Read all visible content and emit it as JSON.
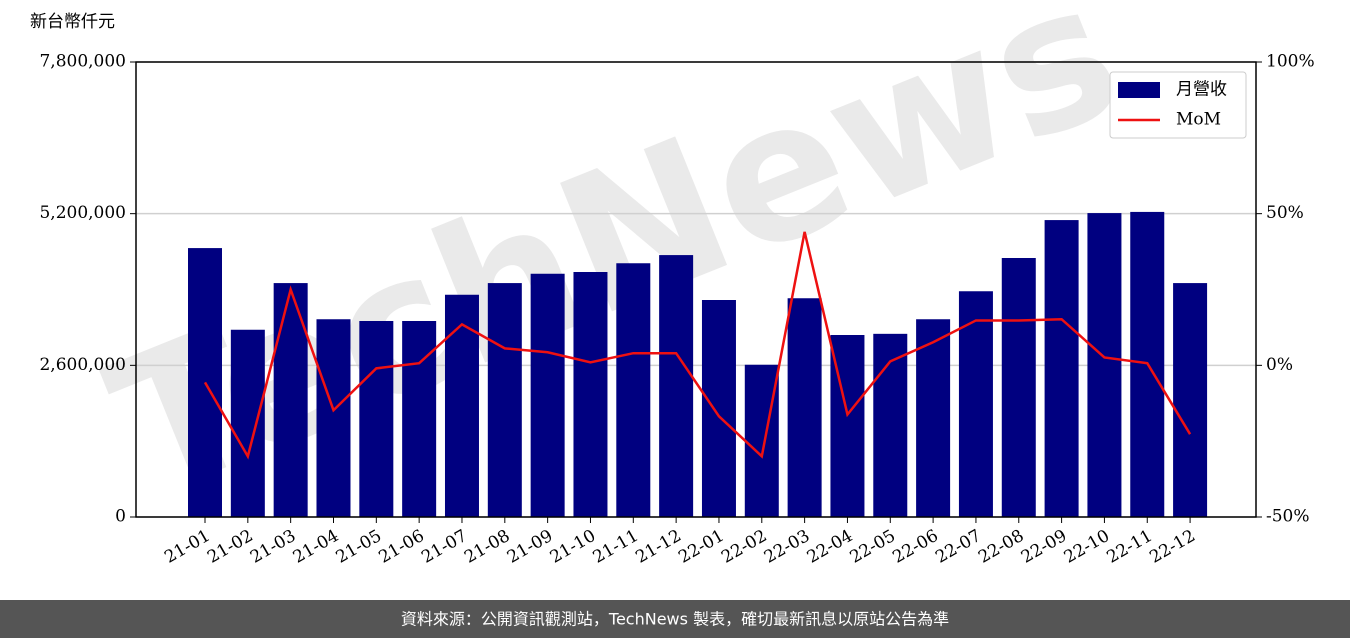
{
  "chart_data": {
    "type": "bar_line",
    "y_label": "新台幣仟元",
    "watermark": "TechNews",
    "source": "資料來源：公開資訊觀測站，TechNews 製表，確切最新訊息以原站公告為準",
    "categories": [
      "21-01",
      "21-02",
      "21-03",
      "21-04",
      "21-05",
      "21-06",
      "21-07",
      "21-08",
      "21-09",
      "21-10",
      "21-11",
      "21-12",
      "22-01",
      "22-02",
      "22-03",
      "22-04",
      "22-05",
      "22-06",
      "22-07",
      "22-08",
      "22-09",
      "22-10",
      "22-11",
      "22-12"
    ],
    "series": [
      {
        "name": "月營收",
        "type": "bar",
        "color": "#000080",
        "values": [
          4610000,
          3210000,
          4010000,
          3390000,
          3360000,
          3360000,
          3810000,
          4010000,
          4170000,
          4200000,
          4350000,
          4490000,
          3720000,
          2610000,
          3750000,
          3120000,
          3140000,
          3390000,
          3870000,
          4440000,
          5090000,
          5210000,
          5230000,
          4010000
        ]
      },
      {
        "name": "MoM",
        "type": "line",
        "axis": "y2",
        "color": "#ee1111",
        "values": [
          -5.6,
          -30,
          25,
          -14.8,
          -1,
          0.7,
          13.5,
          5.6,
          4.3,
          1,
          4,
          4,
          -16.8,
          -30,
          44,
          -16.2,
          1.3,
          7.6,
          14.8,
          14.8,
          15.2,
          2.6,
          0.7,
          -22.7
        ]
      }
    ],
    "ylim": [
      0,
      7800000
    ],
    "yticks": [
      0,
      {
        "value": 2600000,
        "label": "2,600,000"
      },
      {
        "value": 5200000,
        "label": "5,200,000"
      },
      {
        "value": 7800000,
        "label": "7,800,000"
      }
    ],
    "y2lim": [
      -50,
      100
    ],
    "y2ticks": [
      {
        "value": -50,
        "label": "-50%"
      },
      {
        "value": 0,
        "label": "0%"
      },
      {
        "value": 50,
        "label": "50%"
      },
      {
        "value": 100,
        "label": "100%"
      }
    ],
    "grid": true,
    "legend": "upper right"
  }
}
